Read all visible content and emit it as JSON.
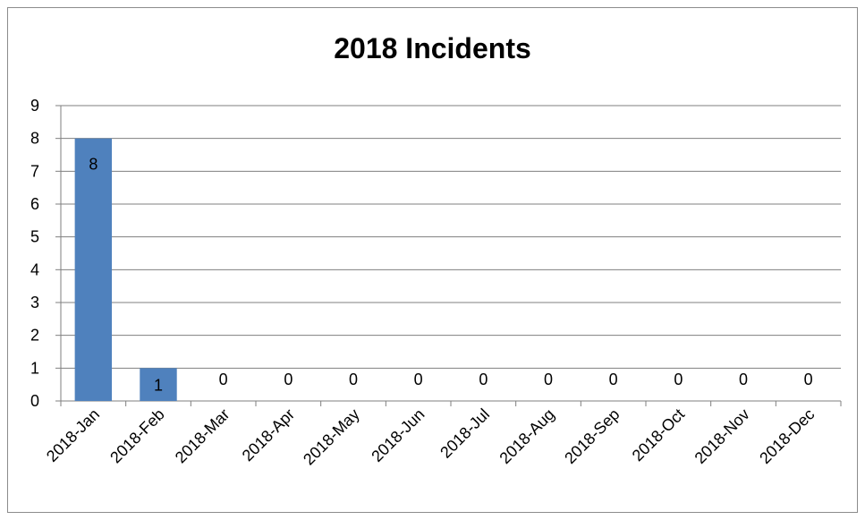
{
  "chart_data": {
    "type": "bar",
    "title": "2018 Incidents",
    "xlabel": "",
    "ylabel": "",
    "categories": [
      "2018-Jan",
      "2018-Feb",
      "2018-Mar",
      "2018-Apr",
      "2018-May",
      "2018-Jun",
      "2018-Jul",
      "2018-Aug",
      "2018-Sep",
      "2018-Oct",
      "2018-Nov",
      "2018-Dec"
    ],
    "values": [
      8,
      1,
      0,
      0,
      0,
      0,
      0,
      0,
      0,
      0,
      0,
      0
    ],
    "ylim": [
      0,
      9
    ],
    "yticks": [
      0,
      1,
      2,
      3,
      4,
      5,
      6,
      7,
      8,
      9
    ],
    "grid": true,
    "legend": "none",
    "bar_color": "#4f81bd",
    "data_labels": true
  }
}
